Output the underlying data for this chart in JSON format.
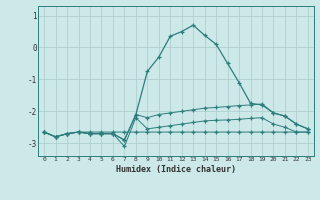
{
  "xlabel": "Humidex (Indice chaleur)",
  "bg_color": "#cce8e8",
  "line_color": "#2d7d7d",
  "grid_color": "#aacccc",
  "xlim": [
    -0.5,
    23.5
  ],
  "ylim": [
    -3.4,
    1.3
  ],
  "yticks": [
    1,
    0,
    -1,
    -2,
    -3
  ],
  "xticks": [
    0,
    1,
    2,
    3,
    4,
    5,
    6,
    7,
    8,
    9,
    10,
    11,
    12,
    13,
    14,
    15,
    16,
    17,
    18,
    19,
    20,
    21,
    22,
    23
  ],
  "line1_x": [
    0,
    1,
    2,
    3,
    4,
    5,
    6,
    7,
    8,
    9,
    10,
    11,
    12,
    13,
    14,
    15,
    16,
    17,
    18,
    19,
    20,
    21,
    22,
    23
  ],
  "line1_y": [
    -2.65,
    -2.8,
    -2.7,
    -2.65,
    -2.65,
    -2.65,
    -2.65,
    -2.65,
    -2.65,
    -2.65,
    -2.65,
    -2.65,
    -2.65,
    -2.65,
    -2.65,
    -2.65,
    -2.65,
    -2.65,
    -2.65,
    -2.65,
    -2.65,
    -2.65,
    -2.65,
    -2.65
  ],
  "line2_x": [
    0,
    1,
    2,
    3,
    4,
    5,
    6,
    7,
    8,
    9,
    10,
    11,
    12,
    13,
    14,
    15,
    16,
    17,
    18,
    19,
    20,
    21,
    22,
    23
  ],
  "line2_y": [
    -2.65,
    -2.8,
    -2.7,
    -2.65,
    -2.7,
    -2.7,
    -2.7,
    -3.1,
    -2.2,
    -2.55,
    -2.5,
    -2.45,
    -2.4,
    -2.35,
    -2.3,
    -2.28,
    -2.27,
    -2.25,
    -2.22,
    -2.2,
    -2.4,
    -2.5,
    -2.65,
    -2.65
  ],
  "line3_x": [
    0,
    1,
    2,
    3,
    4,
    5,
    6,
    7,
    8,
    9,
    10,
    11,
    12,
    13,
    14,
    15,
    16,
    17,
    18,
    19,
    20,
    21,
    22,
    23
  ],
  "line3_y": [
    -2.65,
    -2.8,
    -2.7,
    -2.65,
    -2.7,
    -2.7,
    -2.7,
    -2.9,
    -2.1,
    -2.2,
    -2.1,
    -2.05,
    -2.0,
    -1.95,
    -1.9,
    -1.88,
    -1.85,
    -1.82,
    -1.8,
    -1.77,
    -2.05,
    -2.15,
    -2.4,
    -2.55
  ],
  "line4_x": [
    0,
    1,
    2,
    3,
    4,
    5,
    6,
    7,
    8,
    9,
    10,
    11,
    12,
    13,
    14,
    15,
    16,
    17,
    18,
    19,
    20,
    21,
    22,
    23
  ],
  "line4_y": [
    -2.65,
    -2.8,
    -2.7,
    -2.65,
    -2.7,
    -2.7,
    -2.7,
    -2.9,
    -2.1,
    -0.75,
    -0.3,
    0.35,
    0.5,
    0.7,
    0.38,
    0.1,
    -0.5,
    -1.1,
    -1.75,
    -1.8,
    -2.05,
    -2.15,
    -2.4,
    -2.55
  ]
}
